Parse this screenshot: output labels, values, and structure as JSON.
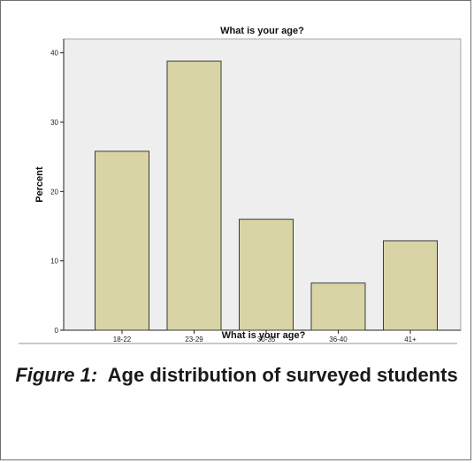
{
  "chart_data": {
    "type": "bar",
    "title": "What is your age?",
    "xlabel": "What is your age?",
    "ylabel": "Percent",
    "categories": [
      "18-22",
      "23-29",
      "30-35",
      "36-40",
      "41+"
    ],
    "values": [
      25.8,
      38.8,
      16.0,
      6.8,
      12.9
    ],
    "ylim": [
      0,
      42
    ],
    "yticks": [
      0,
      10,
      20,
      30,
      40
    ],
    "grid": false,
    "bar_color": "#d8d4a6",
    "plot_background": "#eeeeee"
  },
  "caption": {
    "label": "Figure 1:",
    "text": "Age distribution of surveyed students"
  }
}
